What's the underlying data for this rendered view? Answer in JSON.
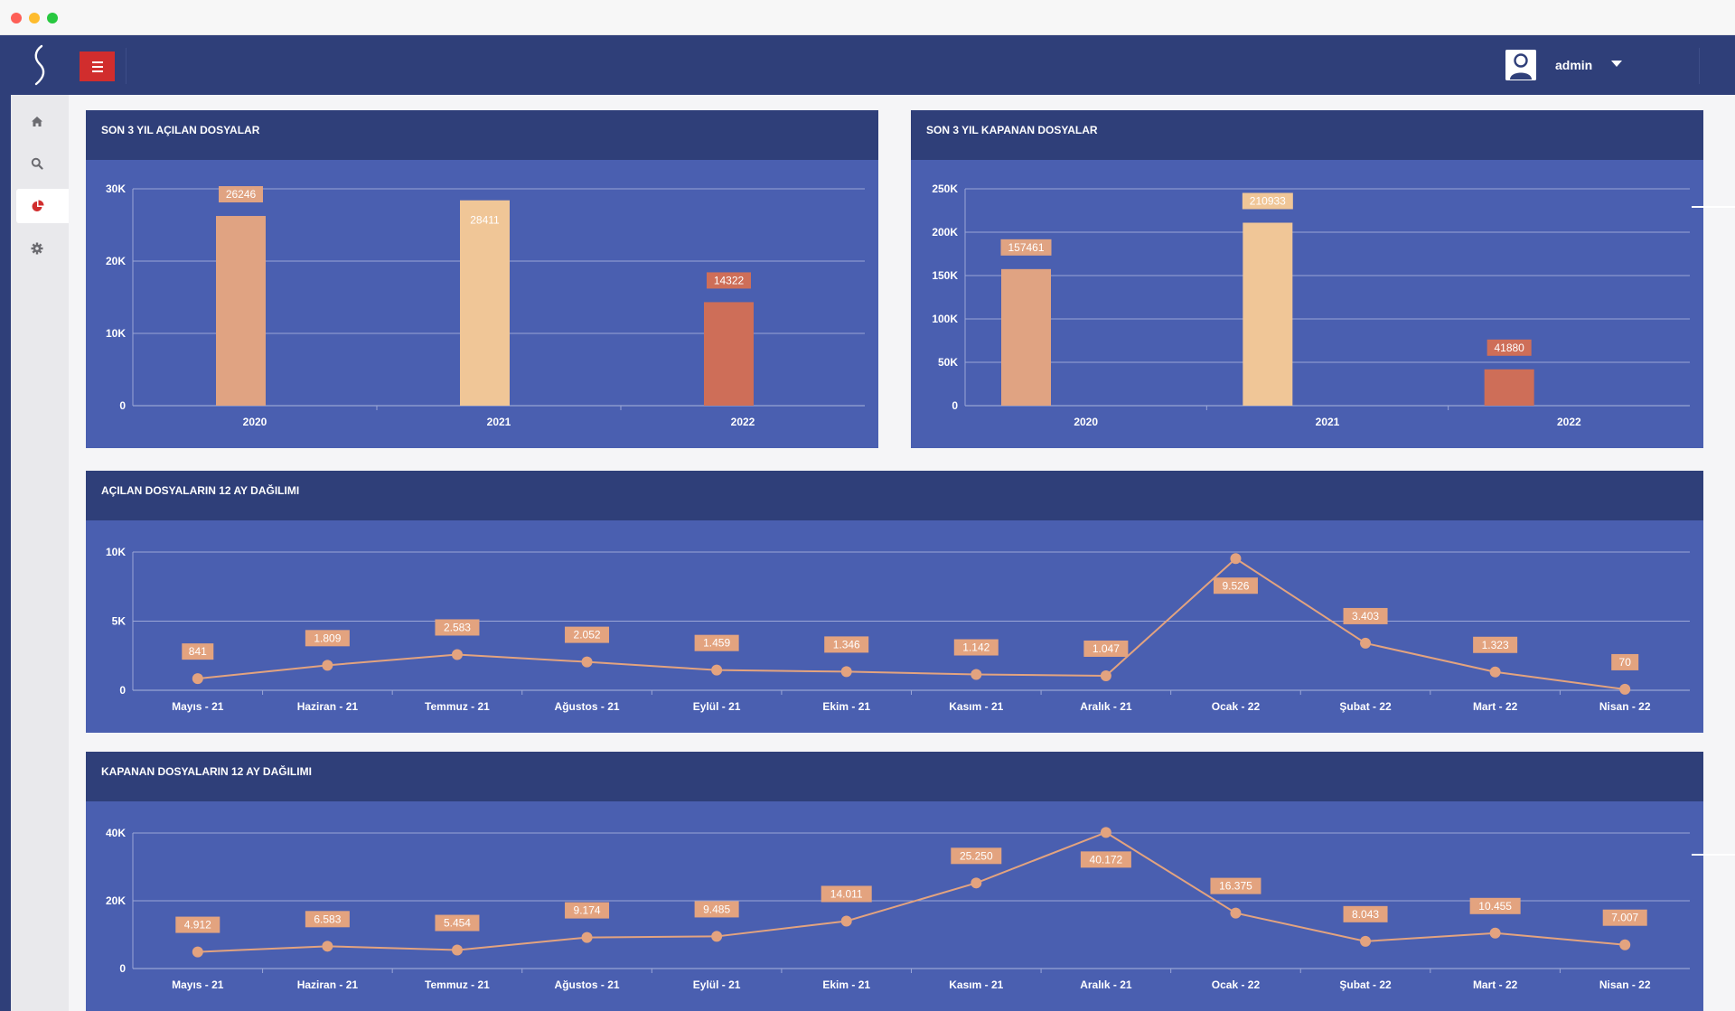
{
  "user": {
    "name": "admin"
  },
  "panels": {
    "opened_3y_title": "SON 3 YIL AÇILAN DOSYALAR",
    "closed_3y_title": "SON 3 YIL KAPANAN DOSYALAR",
    "opened_12m_title": "AÇILAN DOSYALARIN 12 AY DAĞILIMI",
    "closed_12m_title": "KAPANAN DOSYALARIN 12 AY DAĞILIMI"
  },
  "colors": {
    "topbar": "#2f3f79",
    "panel_bg": "#4a5fb0",
    "bar_2020": "#e0a382",
    "bar_2021": "#f0c697",
    "bar_2022": "#ce6e58",
    "line": "#e3a37f",
    "menu_button": "#d12d2d"
  },
  "icons": [
    "home-icon",
    "search-icon",
    "pie-chart-icon",
    "gear-icon",
    "hamburger-icon",
    "user-avatar-icon",
    "caret-down-icon"
  ],
  "chart_data": [
    {
      "type": "bar",
      "categories": [
        "2020",
        "2021",
        "2022"
      ],
      "values": [
        26246,
        28411,
        14322
      ],
      "value_labels": [
        "26246",
        "28411",
        "14322"
      ],
      "yticks": [
        "0",
        "10K",
        "20K",
        "30K"
      ],
      "ylim": [
        0,
        30000
      ]
    },
    {
      "type": "bar",
      "categories": [
        "2020",
        "2021",
        "2022"
      ],
      "values": [
        157461,
        210933,
        41880
      ],
      "value_labels": [
        "157461",
        "210933",
        "41880"
      ],
      "yticks": [
        "0",
        "50K",
        "100K",
        "150K",
        "200K",
        "250K"
      ],
      "ylim": [
        0,
        250000
      ]
    },
    {
      "type": "line",
      "categories": [
        "Mayıs - 21",
        "Haziran - 21",
        "Temmuz - 21",
        "Ağustos - 21",
        "Eylül - 21",
        "Ekim - 21",
        "Kasım - 21",
        "Aralık - 21",
        "Ocak - 22",
        "Şubat - 22",
        "Mart - 22",
        "Nisan - 22"
      ],
      "values": [
        841,
        1809,
        2583,
        2052,
        1459,
        1346,
        1142,
        1047,
        9526,
        3403,
        1323,
        70
      ],
      "value_labels": [
        "841",
        "1.809",
        "2.583",
        "2.052",
        "1.459",
        "1.346",
        "1.142",
        "1.047",
        "9.526",
        "3.403",
        "1.323",
        "70"
      ],
      "yticks": [
        "0",
        "5K",
        "10K"
      ],
      "ylim": [
        0,
        10000
      ]
    },
    {
      "type": "line",
      "categories": [
        "Mayıs - 21",
        "Haziran - 21",
        "Temmuz - 21",
        "Ağustos - 21",
        "Eylül - 21",
        "Ekim - 21",
        "Kasım - 21",
        "Aralık - 21",
        "Ocak - 22",
        "Şubat - 22",
        "Mart - 22",
        "Nisan - 22"
      ],
      "values": [
        4912,
        6583,
        5454,
        9174,
        9485,
        14011,
        25250,
        40172,
        16375,
        8043,
        10455,
        7007
      ],
      "value_labels": [
        "4.912",
        "6.583",
        "5.454",
        "9.174",
        "9.485",
        "14.011",
        "25.250",
        "40.172",
        "16.375",
        "8.043",
        "10.455",
        "7.007"
      ],
      "yticks": [
        "0",
        "20K",
        "40K"
      ],
      "ylim": [
        0,
        40000
      ]
    }
  ]
}
